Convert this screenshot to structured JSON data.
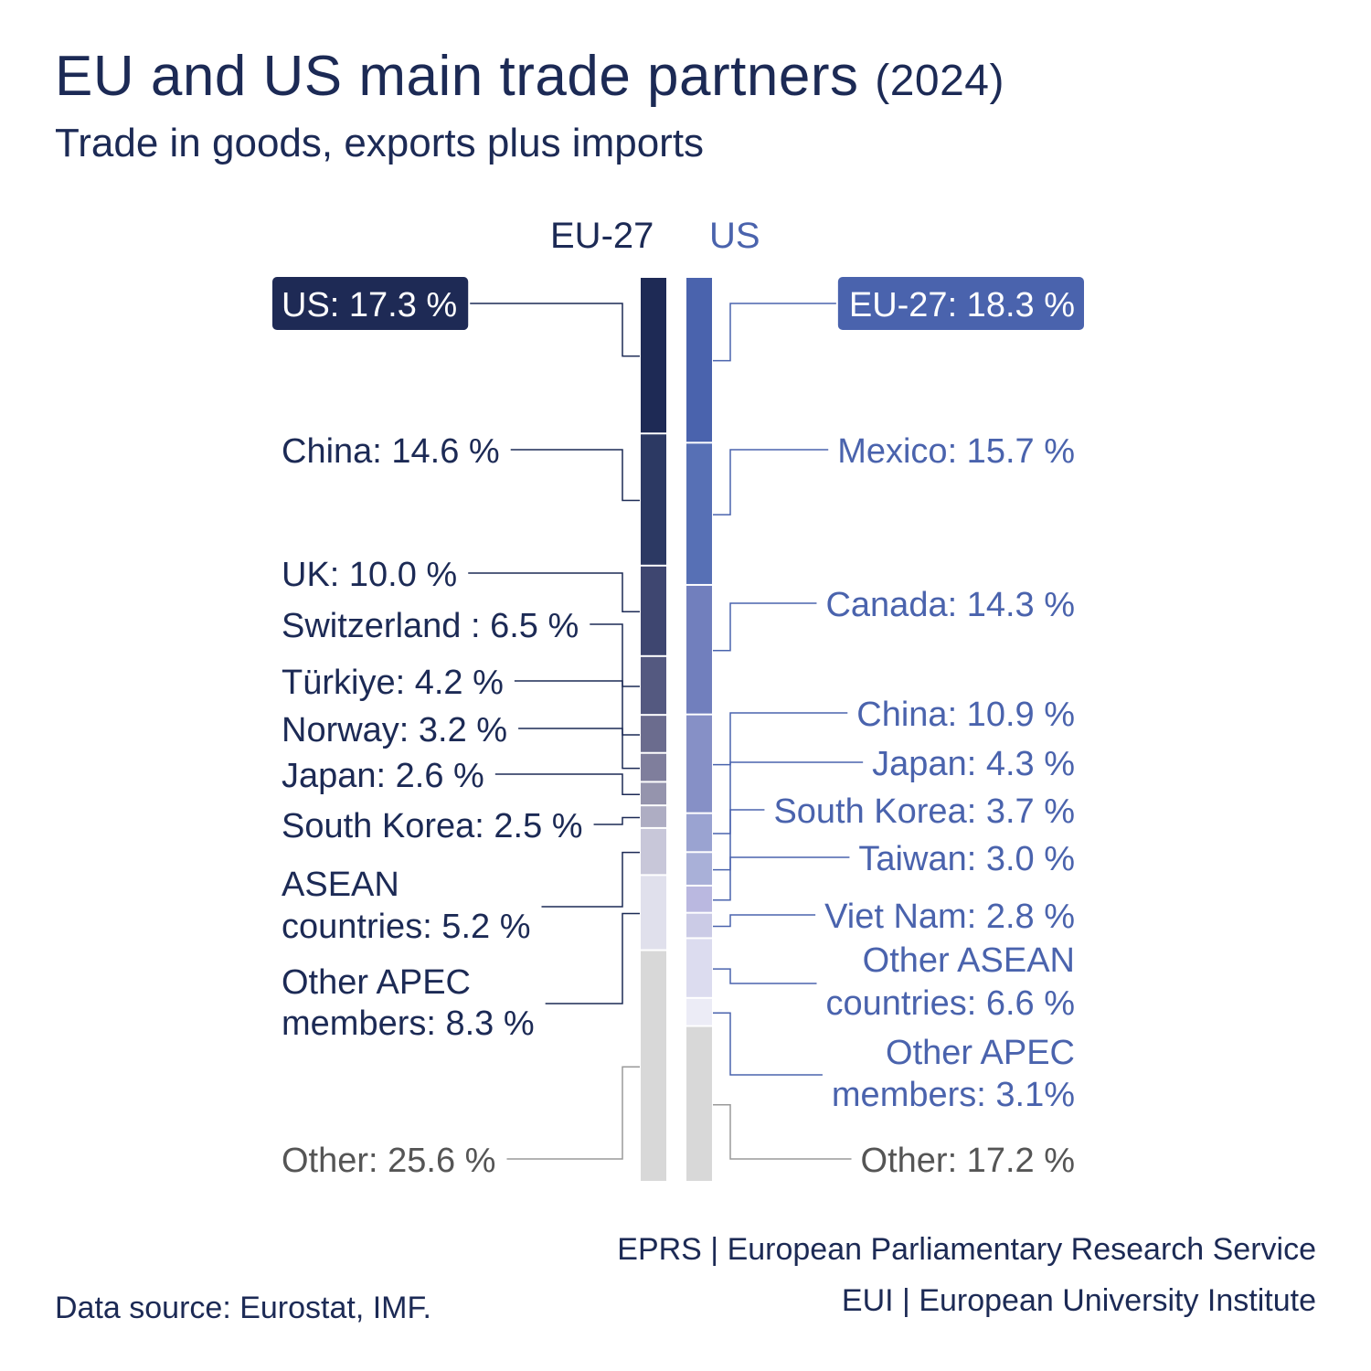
{
  "header": {
    "title": "EU and US main trade partners",
    "title_year": "(2024)",
    "subtitle": "Trade in goods, exports plus imports"
  },
  "footer": {
    "source": "Data source: Eurostat, IMF.",
    "credit_eprs": "EPRS | European Parliamentary Research Service",
    "credit_eui": "EUI | European University Institute"
  },
  "chart_data": {
    "type": "bar",
    "stacked": true,
    "unit": "%",
    "series": [
      {
        "name": "EU-27",
        "color_text": "#1c2a55",
        "segments": [
          {
            "partner": "US",
            "value": 17.3,
            "label": "US: 17.3 %",
            "color": "#1e2a55",
            "boxed": true
          },
          {
            "partner": "China",
            "value": 14.6,
            "label": "China: 14.6 %",
            "color": "#2c3963"
          },
          {
            "partner": "UK",
            "value": 10.0,
            "label": "UK: 10.0 %",
            "color": "#3e4670"
          },
          {
            "partner": "Switzerland",
            "value": 6.5,
            "label": "Switzerland : 6.5 %",
            "color": "#545980"
          },
          {
            "partner": "Türkiye",
            "value": 4.2,
            "label": "Türkiye: 4.2 %",
            "color": "#6b6c8e"
          },
          {
            "partner": "Norway",
            "value": 3.2,
            "label": "Norway: 3.2 %",
            "color": "#7f7e9c"
          },
          {
            "partner": "Japan",
            "value": 2.6,
            "label": "Japan: 2.6 %",
            "color": "#9594ad"
          },
          {
            "partner": "South Korea",
            "value": 2.5,
            "label": "South Korea: 2.5 %",
            "color": "#aeadc3"
          },
          {
            "partner": "ASEAN countries",
            "value": 5.2,
            "label": "ASEAN\ncountries: 5.2 %",
            "color": "#c8c7d9"
          },
          {
            "partner": "Other APEC members",
            "value": 8.3,
            "label": "Other APEC\nmembers: 8.3 %",
            "color": "#e0e0ec"
          },
          {
            "partner": "Other",
            "value": 25.6,
            "label": "Other: 25.6 %",
            "color": "#d8d8d8",
            "grey": true
          }
        ]
      },
      {
        "name": "US",
        "color_text": "#4a63ad",
        "segments": [
          {
            "partner": "EU-27",
            "value": 18.3,
            "label": "EU-27: 18.3 %",
            "color": "#4a63ad",
            "boxed": true
          },
          {
            "partner": "Mexico",
            "value": 15.7,
            "label": "Mexico: 15.7 %",
            "color": "#5770b5"
          },
          {
            "partner": "Canada",
            "value": 14.3,
            "label": "Canada: 14.3 %",
            "color": "#717fbd"
          },
          {
            "partner": "China",
            "value": 10.9,
            "label": "China: 10.9 %",
            "color": "#8690c6"
          },
          {
            "partner": "Japan",
            "value": 4.3,
            "label": "Japan: 4.3 %",
            "color": "#9aa3d1"
          },
          {
            "partner": "South Korea",
            "value": 3.7,
            "label": "South Korea: 3.7 %",
            "color": "#a9b0d8"
          },
          {
            "partner": "Taiwan",
            "value": 3.0,
            "label": "Taiwan: 3.0 %",
            "color": "#bab8e0"
          },
          {
            "partner": "Viet Nam",
            "value": 2.8,
            "label": "Viet Nam: 2.8 %",
            "color": "#cbcbe6"
          },
          {
            "partner": "Other ASEAN countries",
            "value": 6.6,
            "label": "Other ASEAN\ncountries: 6.6 %",
            "color": "#dcdcef"
          },
          {
            "partner": "Other APEC members",
            "value": 3.1,
            "label": "Other APEC\nmembers: 3.1%",
            "color": "#ececf6"
          },
          {
            "partner": "Other",
            "value": 17.2,
            "label": "Other: 17.2 %",
            "color": "#d8d8d8",
            "grey": true
          }
        ]
      }
    ]
  }
}
